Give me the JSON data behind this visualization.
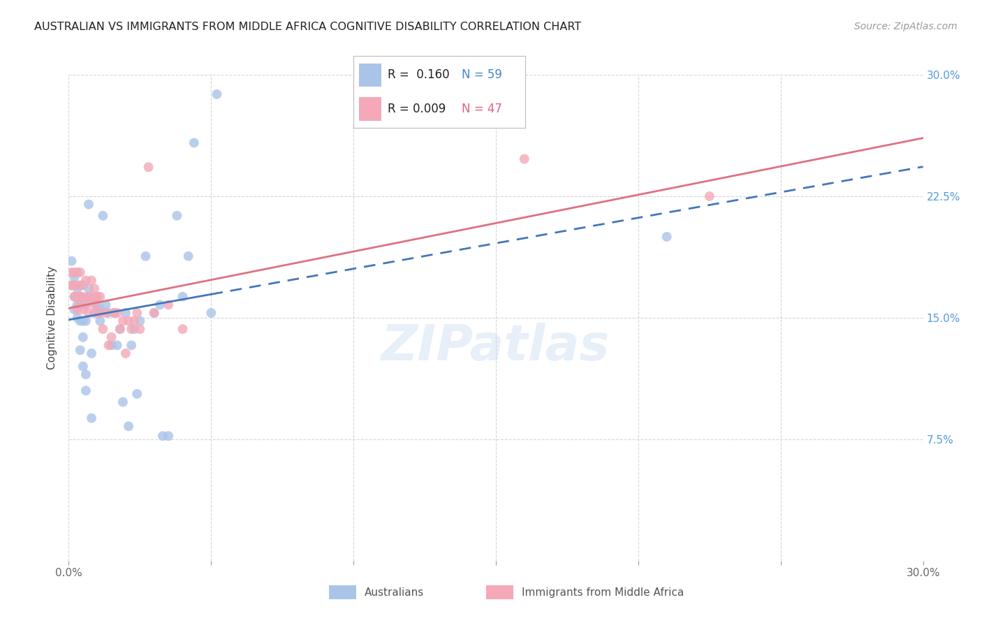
{
  "title": "AUSTRALIAN VS IMMIGRANTS FROM MIDDLE AFRICA COGNITIVE DISABILITY CORRELATION CHART",
  "source": "Source: ZipAtlas.com",
  "ylabel": "Cognitive Disability",
  "x_min": 0.0,
  "x_max": 0.3,
  "y_min": 0.0,
  "y_max": 0.3,
  "x_ticks": [
    0.0,
    0.05,
    0.1,
    0.15,
    0.2,
    0.25,
    0.3
  ],
  "y_ticks": [
    0.0,
    0.075,
    0.15,
    0.225,
    0.3
  ],
  "grid_color": "#cccccc",
  "background_color": "#ffffff",
  "australians_color": "#aac4e8",
  "immigrants_color": "#f4a8b8",
  "australians_line_color": "#4477bb",
  "immigrants_line_color": "#e07080",
  "legend_label1": "Australians",
  "legend_label2": "Immigrants from Middle Africa",
  "watermark": "ZIPatlas",
  "solid_line_end_x": 0.05,
  "aus_line_start_y": 0.148,
  "aus_line_end_y": 0.26,
  "imm_line_y": 0.17,
  "australians_x": [
    0.001,
    0.001,
    0.002,
    0.002,
    0.002,
    0.003,
    0.003,
    0.003,
    0.003,
    0.004,
    0.004,
    0.004,
    0.004,
    0.004,
    0.005,
    0.005,
    0.005,
    0.005,
    0.006,
    0.006,
    0.006,
    0.006,
    0.007,
    0.007,
    0.007,
    0.008,
    0.008,
    0.009,
    0.009,
    0.01,
    0.01,
    0.011,
    0.011,
    0.012,
    0.013,
    0.014,
    0.015,
    0.016,
    0.017,
    0.018,
    0.019,
    0.02,
    0.021,
    0.022,
    0.023,
    0.024,
    0.025,
    0.027,
    0.03,
    0.032,
    0.033,
    0.035,
    0.038,
    0.04,
    0.042,
    0.044,
    0.05,
    0.052,
    0.21
  ],
  "australians_y": [
    0.17,
    0.185,
    0.155,
    0.163,
    0.175,
    0.15,
    0.158,
    0.163,
    0.168,
    0.13,
    0.148,
    0.158,
    0.163,
    0.17,
    0.12,
    0.138,
    0.148,
    0.158,
    0.105,
    0.115,
    0.148,
    0.158,
    0.163,
    0.168,
    0.22,
    0.088,
    0.128,
    0.153,
    0.16,
    0.158,
    0.163,
    0.148,
    0.155,
    0.213,
    0.158,
    0.153,
    0.133,
    0.153,
    0.133,
    0.143,
    0.098,
    0.153,
    0.083,
    0.133,
    0.143,
    0.103,
    0.148,
    0.188,
    0.153,
    0.158,
    0.077,
    0.077,
    0.213,
    0.163,
    0.188,
    0.258,
    0.153,
    0.288,
    0.2
  ],
  "immigrants_x": [
    0.001,
    0.001,
    0.002,
    0.002,
    0.002,
    0.003,
    0.003,
    0.003,
    0.003,
    0.004,
    0.004,
    0.004,
    0.005,
    0.005,
    0.005,
    0.006,
    0.006,
    0.007,
    0.007,
    0.008,
    0.008,
    0.009,
    0.009,
    0.01,
    0.01,
    0.011,
    0.011,
    0.012,
    0.013,
    0.014,
    0.015,
    0.016,
    0.017,
    0.018,
    0.019,
    0.02,
    0.021,
    0.022,
    0.023,
    0.024,
    0.025,
    0.028,
    0.03,
    0.035,
    0.04,
    0.16,
    0.225
  ],
  "immigrants_y": [
    0.17,
    0.178,
    0.163,
    0.17,
    0.178,
    0.155,
    0.163,
    0.17,
    0.178,
    0.158,
    0.163,
    0.178,
    0.155,
    0.163,
    0.17,
    0.158,
    0.173,
    0.153,
    0.163,
    0.163,
    0.173,
    0.158,
    0.168,
    0.153,
    0.163,
    0.153,
    0.163,
    0.143,
    0.153,
    0.133,
    0.138,
    0.153,
    0.153,
    0.143,
    0.148,
    0.128,
    0.148,
    0.143,
    0.148,
    0.153,
    0.143,
    0.243,
    0.153,
    0.158,
    0.143,
    0.248,
    0.225
  ]
}
